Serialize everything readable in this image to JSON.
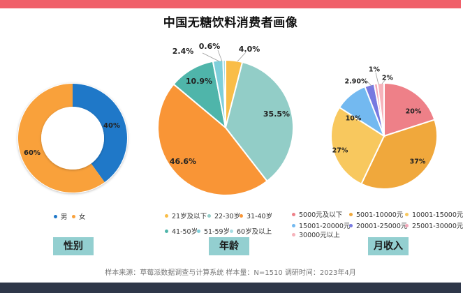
{
  "title": "中国无糖饮料消费者画像",
  "chart_data": [
    {
      "type": "pie",
      "variant": "donut",
      "name": "性别",
      "categories": [
        "男",
        "女"
      ],
      "values": [
        40,
        60
      ],
      "labels": [
        "40%",
        "60%"
      ],
      "colors": [
        "#1f78c8",
        "#f9a13b"
      ]
    },
    {
      "type": "pie",
      "name": "年龄",
      "categories": [
        "21岁及以下",
        "22-30岁",
        "31-40岁",
        "41-50岁",
        "51-59岁",
        "60岁及以上"
      ],
      "values": [
        4.0,
        35.5,
        46.6,
        10.9,
        2.4,
        0.6
      ],
      "labels": [
        "4.0%",
        "35.5%",
        "46.6%",
        "10.9%",
        "2.4%",
        "0.6%"
      ],
      "colors": [
        "#f9bd48",
        "#92cdc7",
        "#f99536",
        "#4fb5aa",
        "#7ecfda",
        "#a5dde3"
      ]
    },
    {
      "type": "pie",
      "name": "月收入",
      "categories": [
        "5000元及以下",
        "5001-10000元",
        "10001-15000元",
        "15001-20000元",
        "20001-25000元",
        "25001-30000元",
        "30000元以上"
      ],
      "values": [
        20,
        37,
        27,
        10,
        2.9,
        1,
        2
      ],
      "labels": [
        "20%",
        "37%",
        "27%",
        "10%",
        "2.90%",
        "1%",
        "2%"
      ],
      "colors": [
        "#ee8088",
        "#f0a83c",
        "#f8c85e",
        "#73b9f0",
        "#7779e0",
        "#f2a6b8",
        "#f6b3bb"
      ]
    }
  ],
  "sections": {
    "gender": "性别",
    "age": "年龄",
    "income": "月收入"
  },
  "footer": "样本来源：草莓派数据调查与计算系统  样本量：N=1510  调研时间：2023年4月"
}
